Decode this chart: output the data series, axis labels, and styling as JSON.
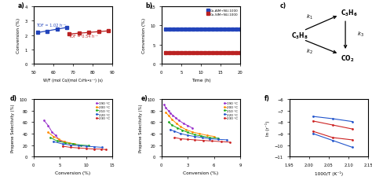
{
  "panel_a": {
    "blue_x": [
      52,
      57,
      62,
      67
    ],
    "blue_y": [
      2.18,
      2.28,
      2.42,
      2.54
    ],
    "red_x": [
      68,
      73,
      78,
      83,
      88
    ],
    "red_y": [
      2.08,
      2.13,
      2.18,
      2.24,
      2.3
    ],
    "blue_tof": "TOF = 1.02 h⁻¹",
    "red_tof": "TOF = 0.54 h⁻¹",
    "xlabel": "W/F (mol Co/(mol C₃H₈•s⁻¹) (s)",
    "ylabel": "Conversion (%)",
    "xlim": [
      50,
      90
    ],
    "ylim": [
      0,
      4
    ],
    "yticks": [
      0,
      1,
      2,
      3,
      4
    ]
  },
  "panel_b": {
    "blue_x": [
      1,
      2,
      3,
      4,
      5,
      6,
      7,
      8,
      9,
      10,
      11,
      12,
      13,
      14,
      15,
      16,
      17,
      18,
      19,
      20
    ],
    "blue_y": [
      9.1,
      9.1,
      9.0,
      9.1,
      9.0,
      9.1,
      9.0,
      9.1,
      9.0,
      9.1,
      9.0,
      9.1,
      9.0,
      9.1,
      9.0,
      9.1,
      9.0,
      9.1,
      9.0,
      9.0
    ],
    "red_x": [
      1,
      2,
      3,
      4,
      5,
      6,
      7,
      8,
      9,
      10,
      11,
      12,
      13,
      14,
      15,
      16,
      17,
      18,
      19,
      20
    ],
    "red_y": [
      2.8,
      2.8,
      2.8,
      2.8,
      2.8,
      2.8,
      2.8,
      2.8,
      2.8,
      2.8,
      2.8,
      2.8,
      2.8,
      2.8,
      2.8,
      2.8,
      2.8,
      2.8,
      2.8,
      2.8
    ],
    "xlabel": "Time (h)",
    "ylabel": "Conversion (%)",
    "xlim": [
      0,
      20
    ],
    "ylim": [
      0,
      15
    ],
    "yticks": [
      0,
      5,
      10,
      15
    ],
    "legend_blue": "Co-AIM+NU-1000",
    "legend_red": "Co-SIM+NU-1000"
  },
  "panel_d": {
    "temps": [
      "190 °C",
      "200 °C",
      "210 °C",
      "220 °C",
      "230 °C"
    ],
    "colors": [
      "#9933CC",
      "#FF8C00",
      "#22AA22",
      "#2255CC",
      "#CC2222"
    ],
    "data": [
      {
        "x": [
          2.0,
          2.8,
          3.5,
          4.2,
          5.0,
          5.8
        ],
        "y": [
          63,
          54,
          43,
          37,
          28,
          26
        ]
      },
      {
        "x": [
          2.8,
          3.8,
          4.8,
          5.8,
          6.8,
          7.8
        ],
        "y": [
          42,
          35,
          30,
          26,
          24,
          22
        ]
      },
      {
        "x": [
          3.2,
          4.5,
          6.0,
          7.5,
          9.0,
          10.5
        ],
        "y": [
          33,
          27,
          24,
          22,
          20,
          19
        ]
      },
      {
        "x": [
          3.8,
          5.5,
          7.0,
          8.5,
          10.0,
          11.5,
          13.0
        ],
        "y": [
          26,
          22,
          20,
          19,
          18,
          17,
          16
        ]
      },
      {
        "x": [
          5.5,
          7.0,
          8.5,
          10.0,
          11.5,
          12.8,
          13.8
        ],
        "y": [
          18,
          16,
          15,
          14,
          13,
          13,
          12
        ]
      }
    ],
    "xlabel": "Conversion (%)",
    "ylabel": "Propene Selectivity (%)",
    "xlim": [
      0,
      15
    ],
    "ylim": [
      0,
      100
    ],
    "xticks": [
      0,
      5,
      10,
      15
    ]
  },
  "panel_e": {
    "temps": [
      "190 °C",
      "200 °C",
      "210 °C",
      "220 °C",
      "230 °C"
    ],
    "colors": [
      "#9933CC",
      "#FF8C00",
      "#22AA22",
      "#2255CC",
      "#CC2222"
    ],
    "data": [
      {
        "x": [
          0.3,
          0.5,
          0.8,
          1.0,
          1.3,
          1.6,
          2.0,
          2.5,
          3.0,
          3.5
        ],
        "y": [
          91,
          85,
          80,
          76,
          72,
          68,
          63,
          58,
          54,
          50
        ]
      },
      {
        "x": [
          0.5,
          0.8,
          1.2,
          1.7,
          2.2,
          2.8,
          3.5,
          4.3,
          5.2,
          6.0
        ],
        "y": [
          77,
          72,
          65,
          58,
          52,
          47,
          43,
          40,
          37,
          35
        ]
      },
      {
        "x": [
          0.8,
          1.2,
          1.8,
          2.4,
          3.0,
          3.8,
          4.5,
          5.5,
          6.5
        ],
        "y": [
          60,
          55,
          50,
          46,
          42,
          38,
          36,
          33,
          32
        ]
      },
      {
        "x": [
          1.0,
          1.5,
          2.2,
          3.0,
          3.8,
          4.7,
          5.5,
          6.5,
          7.5
        ],
        "y": [
          47,
          44,
          40,
          37,
          35,
          33,
          31,
          30,
          29
        ]
      },
      {
        "x": [
          1.5,
          2.2,
          3.0,
          3.8,
          4.8,
          5.8,
          6.8,
          7.8
        ],
        "y": [
          33,
          31,
          30,
          29,
          28,
          27,
          26,
          25
        ]
      }
    ],
    "xlabel": "Conversion (%)",
    "ylabel": "Propene Selectivity (%)",
    "xlim": [
      0,
      9
    ],
    "ylim": [
      0,
      100
    ],
    "xticks": [
      0,
      3,
      6,
      9
    ]
  },
  "panel_f": {
    "series": [
      {
        "label": "blue_upper",
        "color": "#2255CC",
        "x": [
          2.01,
          2.06,
          2.11
        ],
        "y": [
          -7.5,
          -7.7,
          -7.95
        ]
      },
      {
        "label": "blue_lower",
        "color": "#2255CC",
        "x": [
          2.01,
          2.06,
          2.11
        ],
        "y": [
          -9.0,
          -9.6,
          -10.2
        ]
      },
      {
        "label": "red_upper",
        "color": "#CC2222",
        "x": [
          2.01,
          2.06,
          2.11
        ],
        "y": [
          -7.9,
          -8.25,
          -8.6
        ]
      },
      {
        "label": "red_lower",
        "color": "#CC2222",
        "x": [
          2.01,
          2.06,
          2.11
        ],
        "y": [
          -8.8,
          -9.35,
          -9.55
        ]
      }
    ],
    "xlabel": "1000/T (K⁻¹)",
    "ylabel": "ln (r⁻¹)",
    "xlim": [
      1.95,
      2.15
    ],
    "ylim": [
      -11,
      -6
    ],
    "yticks": [
      -6,
      -7,
      -8,
      -9,
      -10,
      -11
    ],
    "xticks": [
      1.95,
      2.0,
      2.05,
      2.1,
      2.15
    ]
  }
}
